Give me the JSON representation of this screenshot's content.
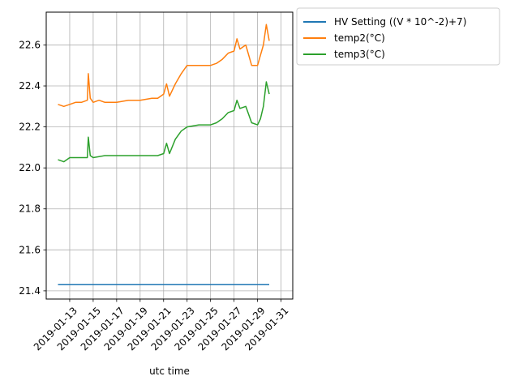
{
  "chart_data": {
    "type": "line",
    "title": "",
    "xlabel": "utc time",
    "ylabel": "",
    "x_is_date": true,
    "xlim": [
      "2019-01-11",
      "2019-02-01"
    ],
    "ylim": [
      21.36,
      22.76
    ],
    "x_ticks": [
      "2019-01-13",
      "2019-01-15",
      "2019-01-17",
      "2019-01-19",
      "2019-01-21",
      "2019-01-23",
      "2019-01-25",
      "2019-01-27",
      "2019-01-29",
      "2019-01-31"
    ],
    "y_ticks": [
      21.4,
      21.6,
      21.8,
      22.0,
      22.2,
      22.4,
      22.6
    ],
    "y_tick_labels": [
      "21.4",
      "21.6",
      "21.8",
      "22.0",
      "22.2",
      "22.4",
      "22.6"
    ],
    "grid": true,
    "legend_position": "outside upper right",
    "series": [
      {
        "name": "HV Setting ((V * 10^-2)+7)",
        "color": "#1f77b4",
        "points": [
          [
            "2019-01-12",
            21.43
          ],
          [
            "2019-01-30",
            21.43
          ]
        ]
      },
      {
        "name": "temp2(°C)",
        "color": "#ff7f0e",
        "points": [
          [
            "2019-01-12",
            22.31
          ],
          [
            "2019-01-12 12:00",
            22.3
          ],
          [
            "2019-01-13",
            22.31
          ],
          [
            "2019-01-13 12:00",
            22.32
          ],
          [
            "2019-01-14",
            22.32
          ],
          [
            "2019-01-14 12:00",
            22.33
          ],
          [
            "2019-01-14 14:00",
            22.46
          ],
          [
            "2019-01-14 18:00",
            22.34
          ],
          [
            "2019-01-15",
            22.32
          ],
          [
            "2019-01-15 12:00",
            22.33
          ],
          [
            "2019-01-16",
            22.32
          ],
          [
            "2019-01-17",
            22.32
          ],
          [
            "2019-01-18",
            22.33
          ],
          [
            "2019-01-19",
            22.33
          ],
          [
            "2019-01-20",
            22.34
          ],
          [
            "2019-01-20 12:00",
            22.34
          ],
          [
            "2019-01-21",
            22.36
          ],
          [
            "2019-01-21 06:00",
            22.41
          ],
          [
            "2019-01-21 12:00",
            22.35
          ],
          [
            "2019-01-22",
            22.41
          ],
          [
            "2019-01-22 12:00",
            22.46
          ],
          [
            "2019-01-23",
            22.5
          ],
          [
            "2019-01-24",
            22.5
          ],
          [
            "2019-01-25",
            22.5
          ],
          [
            "2019-01-25 12:00",
            22.51
          ],
          [
            "2019-01-26",
            22.53
          ],
          [
            "2019-01-26 12:00",
            22.56
          ],
          [
            "2019-01-27",
            22.57
          ],
          [
            "2019-01-27 06:00",
            22.63
          ],
          [
            "2019-01-27 12:00",
            22.58
          ],
          [
            "2019-01-28",
            22.6
          ],
          [
            "2019-01-28 06:00",
            22.55
          ],
          [
            "2019-01-28 12:00",
            22.5
          ],
          [
            "2019-01-29",
            22.5
          ],
          [
            "2019-01-29 06:00",
            22.55
          ],
          [
            "2019-01-29 12:00",
            22.6
          ],
          [
            "2019-01-29 18:00",
            22.7
          ],
          [
            "2019-01-30",
            22.62
          ]
        ]
      },
      {
        "name": "temp3(°C)",
        "color": "#2ca02c",
        "points": [
          [
            "2019-01-12",
            22.04
          ],
          [
            "2019-01-12 12:00",
            22.03
          ],
          [
            "2019-01-13",
            22.05
          ],
          [
            "2019-01-13 12:00",
            22.05
          ],
          [
            "2019-01-14",
            22.05
          ],
          [
            "2019-01-14 12:00",
            22.05
          ],
          [
            "2019-01-14 14:00",
            22.15
          ],
          [
            "2019-01-14 18:00",
            22.06
          ],
          [
            "2019-01-15",
            22.05
          ],
          [
            "2019-01-16",
            22.06
          ],
          [
            "2019-01-17",
            22.06
          ],
          [
            "2019-01-18",
            22.06
          ],
          [
            "2019-01-19",
            22.06
          ],
          [
            "2019-01-20",
            22.06
          ],
          [
            "2019-01-20 12:00",
            22.06
          ],
          [
            "2019-01-21",
            22.07
          ],
          [
            "2019-01-21 06:00",
            22.12
          ],
          [
            "2019-01-21 12:00",
            22.07
          ],
          [
            "2019-01-22",
            22.14
          ],
          [
            "2019-01-22 12:00",
            22.18
          ],
          [
            "2019-01-23",
            22.2
          ],
          [
            "2019-01-24",
            22.21
          ],
          [
            "2019-01-25",
            22.21
          ],
          [
            "2019-01-25 12:00",
            22.22
          ],
          [
            "2019-01-26",
            22.24
          ],
          [
            "2019-01-26 12:00",
            22.27
          ],
          [
            "2019-01-27",
            22.28
          ],
          [
            "2019-01-27 06:00",
            22.33
          ],
          [
            "2019-01-27 12:00",
            22.29
          ],
          [
            "2019-01-28",
            22.3
          ],
          [
            "2019-01-28 06:00",
            22.26
          ],
          [
            "2019-01-28 12:00",
            22.22
          ],
          [
            "2019-01-29",
            22.21
          ],
          [
            "2019-01-29 06:00",
            22.24
          ],
          [
            "2019-01-29 12:00",
            22.3
          ],
          [
            "2019-01-29 18:00",
            22.42
          ],
          [
            "2019-01-30",
            22.36
          ]
        ]
      }
    ]
  }
}
